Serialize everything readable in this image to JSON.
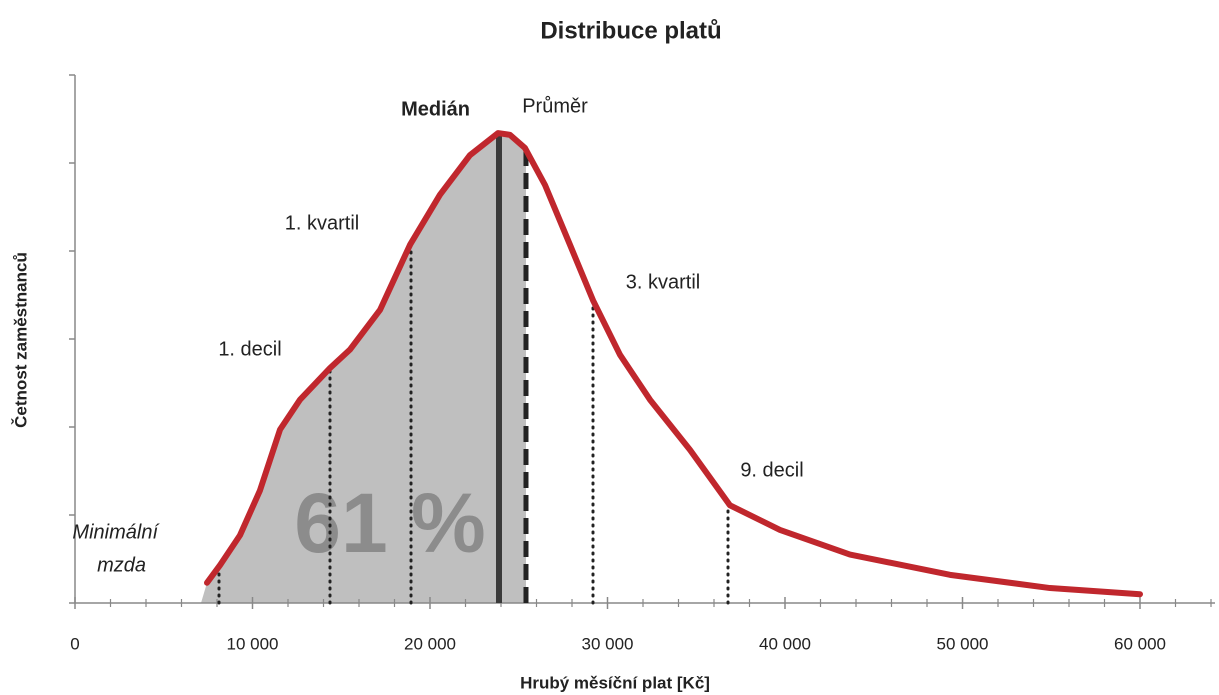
{
  "chart_data": {
    "type": "line",
    "title": "Distribuce platů",
    "xlabel": "Hrubý měsíční plat [Kč]",
    "ylabel": "Četnost zaměstnanců",
    "x": [
      7437,
      8169,
      9296,
      10423,
      11549,
      12676,
      14366,
      15493,
      17183,
      18873,
      20563,
      22254,
      23831,
      24507,
      25352,
      26479,
      27887,
      29183,
      30704,
      32394,
      34648,
      36901,
      39718,
      43662,
      49296,
      54930,
      60000
    ],
    "values": [
      0.23,
      0.43,
      0.77,
      1.28,
      1.97,
      2.31,
      2.67,
      2.88,
      3.33,
      4.07,
      4.64,
      5.09,
      5.34,
      5.32,
      5.17,
      4.75,
      4.07,
      3.44,
      2.82,
      2.31,
      1.74,
      1.11,
      0.83,
      0.55,
      0.32,
      0.17,
      0.1
    ],
    "color": "#c0272d",
    "fill_color": "#bfbfbf",
    "xlim": [
      0,
      64000
    ],
    "ylim": [
      0,
      6
    ],
    "xticks": [
      0,
      {
        "value": 10000,
        "label": "10 000"
      },
      {
        "value": 20000,
        "label": "20 000"
      },
      {
        "value": 30000,
        "label": "30 000"
      },
      {
        "value": 40000,
        "label": "40 000"
      },
      {
        "value": 50000,
        "label": "50 000"
      },
      {
        "value": 60000,
        "label": "60 000"
      }
    ],
    "xminor_ticks": [
      2000,
      4000,
      6000,
      8000,
      12000,
      14000,
      16000,
      18000,
      22000,
      24000,
      26000,
      28000,
      32000,
      34000,
      36000,
      38000,
      42000,
      44000,
      46000,
      48000,
      52000,
      54000,
      56000,
      58000,
      62000,
      64000
    ],
    "yticks": [
      0,
      1,
      2,
      3,
      4,
      5,
      6
    ],
    "area_label": "61 %",
    "markers": [
      {
        "label": [
          "Minimální",
          "mzda"
        ],
        "x": 8113,
        "style": "dotted"
      },
      {
        "label": [
          "1. decil"
        ],
        "x": 14366,
        "style": "dotted"
      },
      {
        "label": [
          "1. kvartil"
        ],
        "x": 18930,
        "style": "dotted"
      },
      {
        "label": [
          "Medián"
        ],
        "x": 23887,
        "style": "solid"
      },
      {
        "label": [
          "Průměr"
        ],
        "x": 25408,
        "style": "dashed"
      },
      {
        "label": [
          "3. kvartil"
        ],
        "x": 29183,
        "style": "dotted"
      },
      {
        "label": [
          "9. decil"
        ],
        "x": 36789,
        "style": "dotted"
      }
    ],
    "shade_to_marker": 4
  }
}
